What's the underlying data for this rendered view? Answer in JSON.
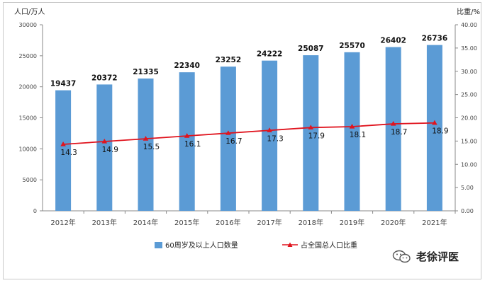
{
  "chart_data": {
    "type": "bar+line",
    "categories": [
      "2012年",
      "2013年",
      "2014年",
      "2015年",
      "2016年",
      "2017年",
      "2018年",
      "2019年",
      "2020年",
      "2021年"
    ],
    "series": [
      {
        "name": "60周岁及以上人口数量",
        "type": "bar",
        "axis": "left",
        "values": [
          19437,
          20372,
          21335,
          22340,
          23252,
          24222,
          25087,
          25570,
          26402,
          26736
        ]
      },
      {
        "name": "占全国总人口比重",
        "type": "line",
        "axis": "right",
        "values": [
          14.3,
          14.9,
          15.5,
          16.1,
          16.7,
          17.3,
          17.9,
          18.1,
          18.7,
          18.9
        ]
      }
    ],
    "ylabel_left": "人口/万人",
    "ylabel_right": "比重/%",
    "ylim_left": [
      0,
      30000
    ],
    "ylim_right": [
      0,
      40
    ],
    "yticks_left": [
      "0",
      "5000",
      "10000",
      "15000",
      "20000",
      "25000",
      "30000"
    ],
    "yticks_right": [
      "0.00",
      "5.00",
      "10.00",
      "15.00",
      "20.00",
      "25.00",
      "30.00",
      "35.00",
      "40.00"
    ],
    "legend_position": "bottom",
    "grid": false,
    "colors": {
      "bar": "#5b9bd5",
      "line": "#e0141e"
    }
  },
  "watermark": {
    "text": "老徐评医",
    "icon": "wechat-icon"
  }
}
